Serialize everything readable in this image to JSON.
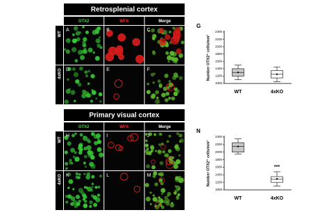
{
  "panels": [
    {
      "title": "Retrosplenial cortex",
      "columns": [
        "OTX2",
        "WFA",
        "Merge"
      ],
      "rows": [
        "WT",
        "4xKO"
      ],
      "letters": [
        "A",
        "B",
        "C",
        "D",
        "E",
        "F"
      ]
    },
    {
      "title": "Primary visual cortex",
      "columns": [
        "OTX2",
        "WFA",
        "Merge"
      ],
      "rows": [
        "WT",
        "4xKO"
      ],
      "letters": [
        "H",
        "I",
        "J",
        "K",
        "L",
        "M"
      ]
    }
  ],
  "chart_data": [
    {
      "type": "box",
      "label": "G",
      "ylabel": "Number OTX2⁺ cells/mm²",
      "categories": [
        "WT",
        "4xKO"
      ],
      "ylim": [
        1000,
        2400
      ],
      "yticks": [
        1000,
        1200,
        1400,
        1600,
        1800,
        2000,
        2200,
        2400
      ],
      "min": [
        1100,
        1050
      ],
      "q1": [
        1200,
        1150
      ],
      "median": [
        1300,
        1250
      ],
      "q3": [
        1400,
        1350
      ],
      "max": [
        1500,
        1450
      ],
      "mean": [
        1300,
        1250
      ],
      "colors": [
        "#c8c8c8",
        "#ffffff"
      ]
    },
    {
      "type": "box",
      "label": "N",
      "ylabel": "Number OTX2⁺ cells/mm²",
      "categories": [
        "WT",
        "4xKO"
      ],
      "ylim": [
        1000,
        2400
      ],
      "yticks": [
        1000,
        1200,
        1400,
        1600,
        1800,
        2000,
        2200,
        2400
      ],
      "min": [
        1950,
        1100
      ],
      "q1": [
        2000,
        1200
      ],
      "median": [
        2150,
        1280
      ],
      "q3": [
        2250,
        1350
      ],
      "max": [
        2350,
        1480
      ],
      "mean": [
        2150,
        1290
      ],
      "colors": [
        "#c8c8c8",
        "#ffffff"
      ],
      "significance": {
        "category": "4xKO",
        "label": "***"
      }
    }
  ]
}
